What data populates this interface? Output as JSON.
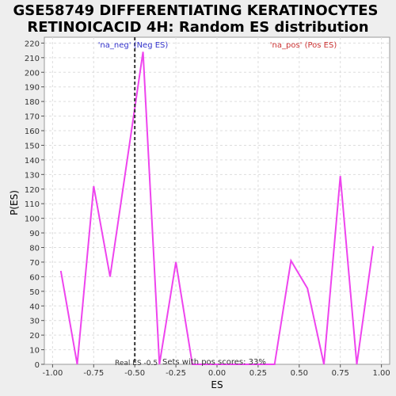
{
  "chart_data": {
    "type": "line",
    "title_line1": "GSE58749 DIFFERENTIATING KERATINOCYTES",
    "title_line2": "RETINOICACID 4H: Random ES distribution",
    "xlabel": "ES",
    "ylabel": "P(ES)",
    "xlim": [
      -1.05,
      1.05
    ],
    "ylim": [
      0,
      224
    ],
    "x_ticks": [
      -1.0,
      -0.75,
      -0.5,
      -0.25,
      0.0,
      0.25,
      0.5,
      0.75,
      1.0
    ],
    "x_tick_labels": [
      "-1.00",
      "-0.75",
      "-0.50",
      "-0.25",
      "0.00",
      "0.25",
      "0.50",
      "0.75",
      "1.00"
    ],
    "y_ticks": [
      0,
      10,
      20,
      30,
      40,
      50,
      60,
      70,
      80,
      90,
      100,
      110,
      120,
      130,
      140,
      150,
      160,
      170,
      180,
      190,
      200,
      210,
      220
    ],
    "grid": true,
    "series": [
      {
        "color": "#ee44ee",
        "x": [
          -0.95,
          -0.85,
          -0.75,
          -0.65,
          -0.55,
          -0.45,
          -0.35,
          -0.25,
          -0.15,
          -0.05,
          0.05,
          0.15,
          0.25,
          0.35,
          0.45,
          0.55,
          0.65,
          0.75,
          0.85,
          0.95
        ],
        "y": [
          64,
          0,
          122,
          60,
          137,
          214,
          0,
          70,
          0,
          0,
          0,
          0,
          0,
          0,
          71,
          52,
          0,
          129,
          0,
          81
        ]
      }
    ],
    "real_es": -0.5,
    "annotations": {
      "neg_label": "'na_neg' (Neg ES)",
      "pos_label": "'na_pos' (Pos ES)",
      "real_es_label": "Real ES -0.5",
      "sets_pos_label": "Sets with pos scores: 33%"
    },
    "colors": {
      "line": "#ee44ee",
      "neg": "#3333cc",
      "pos": "#cc3333",
      "real_es_line": "#333333",
      "plot_bg": "#ffffff",
      "page_bg": "#eeeeee",
      "grid": "#dddddd"
    }
  }
}
